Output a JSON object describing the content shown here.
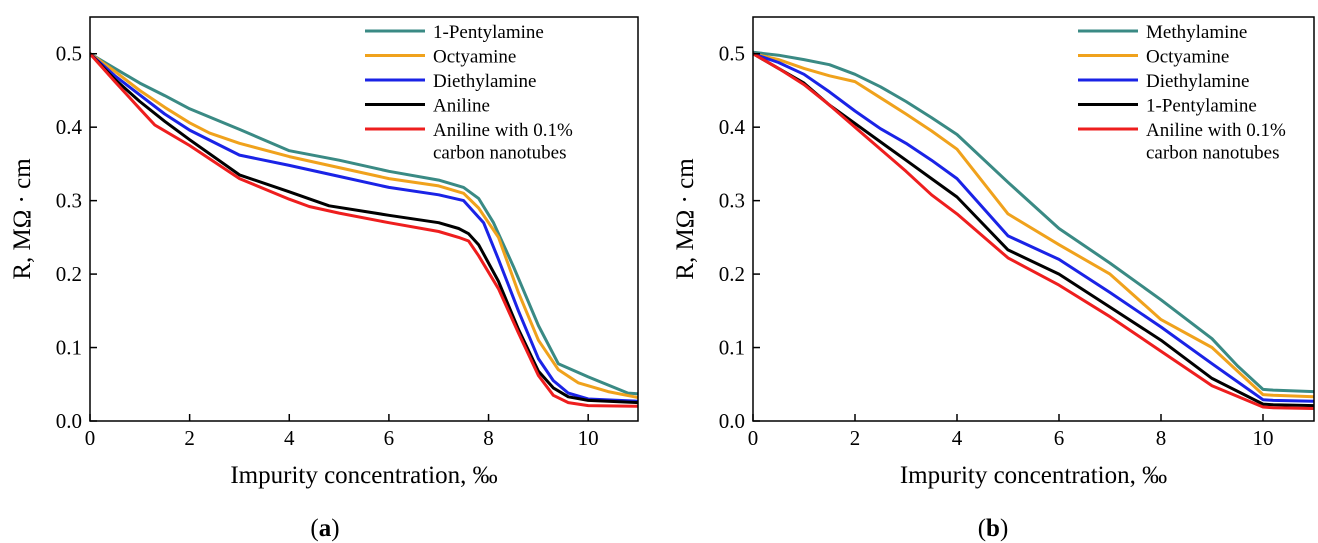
{
  "chart_data": [
    {
      "type": "line",
      "panel_label": "(a)",
      "xlabel": "Impurity concentration, ‰",
      "ylabel": "R, MΩ · cm",
      "xlim": [
        0,
        11
      ],
      "ylim": [
        0,
        0.55
      ],
      "xticks": [
        0,
        2,
        4,
        6,
        8,
        10
      ],
      "yticks": [
        0.0,
        0.1,
        0.2,
        0.3,
        0.4,
        0.5
      ],
      "xtick_labels": [
        "0",
        "2",
        "4",
        "6",
        "8",
        "10"
      ],
      "ytick_labels": [
        "0.0",
        "0.1",
        "0.2",
        "0.3",
        "0.4",
        "0.5"
      ],
      "grid": false,
      "legend_position": "top-right",
      "series": [
        {
          "name": "1-Pentylamine",
          "color": "#3a8a84",
          "x": [
            0,
            0.5,
            1,
            1.5,
            2,
            3,
            4,
            5,
            6,
            7,
            7.5,
            7.8,
            8.1,
            8.5,
            9,
            9.4,
            10,
            10.8,
            11
          ],
          "y": [
            0.5,
            0.48,
            0.46,
            0.443,
            0.425,
            0.397,
            0.368,
            0.355,
            0.34,
            0.328,
            0.318,
            0.303,
            0.27,
            0.21,
            0.13,
            0.078,
            0.06,
            0.038,
            0.037
          ]
        },
        {
          "name": "Octyamine",
          "color": "#f0a21c",
          "x": [
            0,
            0.5,
            1,
            1.5,
            2,
            2.4,
            3,
            4,
            5,
            6,
            7,
            7.5,
            7.8,
            8.2,
            8.6,
            9,
            9.4,
            9.8,
            10.4,
            11
          ],
          "y": [
            0.5,
            0.476,
            0.45,
            0.427,
            0.406,
            0.392,
            0.378,
            0.36,
            0.345,
            0.33,
            0.32,
            0.31,
            0.29,
            0.25,
            0.175,
            0.11,
            0.07,
            0.052,
            0.04,
            0.032
          ]
        },
        {
          "name": "Diethylamine",
          "color": "#1a23e6",
          "x": [
            0,
            0.5,
            1,
            1.5,
            2,
            3,
            4,
            5,
            6,
            7,
            7.5,
            7.9,
            8.2,
            8.6,
            9,
            9.3,
            9.6,
            10,
            11
          ],
          "y": [
            0.5,
            0.47,
            0.444,
            0.418,
            0.396,
            0.362,
            0.348,
            0.333,
            0.318,
            0.308,
            0.3,
            0.27,
            0.22,
            0.15,
            0.085,
            0.055,
            0.038,
            0.03,
            0.027
          ]
        },
        {
          "name": "Aniline",
          "color": "#000000",
          "x": [
            0,
            0.5,
            1,
            1.5,
            2,
            3,
            4,
            4.8,
            6,
            7,
            7.4,
            7.6,
            7.8,
            8.2,
            8.6,
            9,
            9.3,
            9.6,
            10,
            11
          ],
          "y": [
            0.5,
            0.465,
            0.435,
            0.408,
            0.383,
            0.335,
            0.312,
            0.293,
            0.28,
            0.27,
            0.262,
            0.255,
            0.24,
            0.19,
            0.125,
            0.068,
            0.045,
            0.033,
            0.028,
            0.025
          ]
        },
        {
          "name": "Aniline with 0.1% carbon nanotubes",
          "color": "#ee1e1e",
          "x": [
            0,
            0.5,
            1,
            1.3,
            2,
            3,
            4,
            4.4,
            5,
            6,
            7,
            7.4,
            7.6,
            7.8,
            8.2,
            8.6,
            9,
            9.3,
            9.6,
            10,
            11
          ],
          "y": [
            0.5,
            0.462,
            0.425,
            0.403,
            0.375,
            0.33,
            0.302,
            0.292,
            0.283,
            0.27,
            0.258,
            0.25,
            0.245,
            0.225,
            0.18,
            0.12,
            0.062,
            0.035,
            0.025,
            0.021,
            0.02
          ]
        }
      ]
    },
    {
      "type": "line",
      "panel_label": "(b)",
      "xlabel": "Impurity concentration, ‰",
      "ylabel": "R, MΩ · cm",
      "xlim": [
        0,
        11
      ],
      "ylim": [
        0,
        0.55
      ],
      "xticks": [
        0,
        2,
        4,
        6,
        8,
        10
      ],
      "yticks": [
        0.0,
        0.1,
        0.2,
        0.3,
        0.4,
        0.5
      ],
      "xtick_labels": [
        "0",
        "2",
        "4",
        "6",
        "8",
        "10"
      ],
      "ytick_labels": [
        "0.0",
        "0.1",
        "0.2",
        "0.3",
        "0.4",
        "0.5"
      ],
      "grid": false,
      "legend_position": "top-right",
      "series": [
        {
          "name": "Methylamine",
          "color": "#3a8a84",
          "x": [
            0,
            0.5,
            1,
            1.5,
            2,
            2.5,
            3,
            3.5,
            4,
            5,
            6,
            7,
            8,
            9,
            9.5,
            10,
            10.2,
            11
          ],
          "y": [
            0.502,
            0.498,
            0.492,
            0.485,
            0.472,
            0.455,
            0.435,
            0.413,
            0.39,
            0.325,
            0.262,
            0.215,
            0.165,
            0.112,
            0.075,
            0.043,
            0.042,
            0.04
          ]
        },
        {
          "name": "Octyamine",
          "color": "#f0a21c",
          "x": [
            0,
            0.5,
            1,
            1.5,
            2,
            2.5,
            3,
            3.5,
            4,
            5,
            6,
            7,
            8,
            9,
            9.5,
            10,
            10.2,
            11
          ],
          "y": [
            0.5,
            0.492,
            0.48,
            0.47,
            0.462,
            0.44,
            0.418,
            0.395,
            0.37,
            0.282,
            0.24,
            0.2,
            0.138,
            0.1,
            0.068,
            0.036,
            0.035,
            0.033
          ]
        },
        {
          "name": "Diethylamine",
          "color": "#1a23e6",
          "x": [
            0,
            0.5,
            1,
            1.5,
            2,
            2.5,
            3,
            3.5,
            4,
            5,
            6,
            7,
            8,
            9,
            10,
            10.2,
            11
          ],
          "y": [
            0.5,
            0.488,
            0.472,
            0.448,
            0.422,
            0.398,
            0.378,
            0.355,
            0.33,
            0.252,
            0.22,
            0.175,
            0.128,
            0.078,
            0.029,
            0.028,
            0.027
          ]
        },
        {
          "name": "1-Pentylamine",
          "color": "#000000",
          "x": [
            0,
            0.5,
            1,
            1.5,
            2,
            2.5,
            3,
            3.5,
            4,
            5,
            6,
            7,
            8,
            9,
            10,
            10.2,
            11
          ],
          "y": [
            0.5,
            0.48,
            0.46,
            0.43,
            0.405,
            0.38,
            0.355,
            0.33,
            0.305,
            0.233,
            0.2,
            0.155,
            0.11,
            0.058,
            0.023,
            0.022,
            0.021
          ]
        },
        {
          "name": "Aniline with 0.1% carbon nanotubes",
          "color": "#ee1e1e",
          "x": [
            0,
            0.5,
            1,
            1.5,
            2,
            2.5,
            3,
            3.5,
            4,
            5,
            6,
            7,
            8,
            9,
            10,
            10.2,
            11
          ],
          "y": [
            0.5,
            0.48,
            0.458,
            0.43,
            0.4,
            0.37,
            0.34,
            0.308,
            0.282,
            0.222,
            0.185,
            0.142,
            0.095,
            0.048,
            0.019,
            0.018,
            0.017
          ]
        }
      ]
    }
  ]
}
